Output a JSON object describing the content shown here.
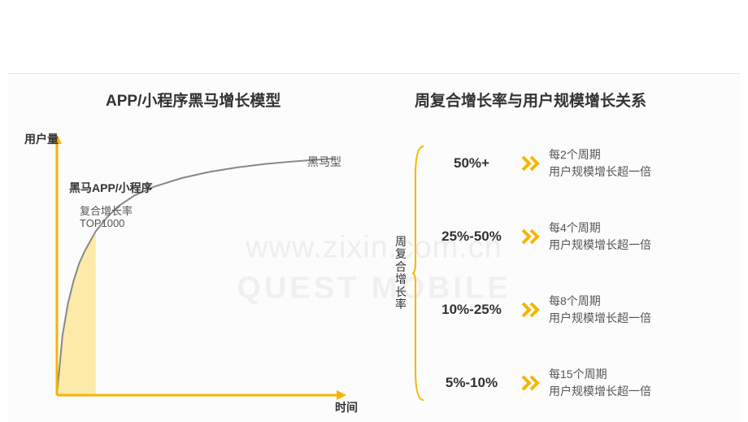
{
  "colors": {
    "accent": "#f6b500",
    "accent_fill": "#fde9a8",
    "curve": "#888888",
    "axis": "#f6b500",
    "text": "#333333",
    "subtext": "#555555",
    "background": "#fcfcfc",
    "watermark": "#eeeeee"
  },
  "watermark_line1": "www.zixin.com.cn",
  "watermark_line2": "QUEST MOBILE",
  "left": {
    "title": "APP/小程序黑马增长模型",
    "y_axis_label": "用户量",
    "x_axis_label": "时间",
    "curve_label": "黑马型",
    "annotation_title": "黑马APP/小程序",
    "annotation_line1": "复合增长率",
    "annotation_line2": "TOP1000",
    "chart": {
      "type": "line-with-area-highlight",
      "xlim": [
        0,
        100
      ],
      "ylim": [
        0,
        100
      ],
      "curve_points": [
        [
          0,
          0
        ],
        [
          2,
          24
        ],
        [
          4,
          37
        ],
        [
          6,
          46
        ],
        [
          8,
          53
        ],
        [
          10,
          58
        ],
        [
          14,
          66
        ],
        [
          18,
          71.5
        ],
        [
          22,
          76
        ],
        [
          28,
          80.5
        ],
        [
          35,
          84
        ],
        [
          45,
          87.5
        ],
        [
          55,
          90
        ],
        [
          65,
          91.8
        ],
        [
          75,
          93.2
        ],
        [
          85,
          94.2
        ],
        [
          95,
          95
        ],
        [
          100,
          95.4
        ]
      ],
      "curve_color": "#888888",
      "curve_width": 2,
      "highlight_x_end": 14,
      "highlight_fill": "#fde9a8",
      "axis_color": "#f6b500",
      "axis_width": 3,
      "arrowheads": true
    }
  },
  "right": {
    "title": "周复合增长率与用户规模增长关系",
    "vertical_label": "周复合增长率",
    "bracket_color": "#f6b500",
    "chevron_color": "#f6b500",
    "rows": [
      {
        "range": "50%+",
        "desc_line1": "每2个周期",
        "desc_line2": "用户规模增长超一倍"
      },
      {
        "range": "25%-50%",
        "desc_line1": "每4个周期",
        "desc_line2": "用户规模增长超一倍"
      },
      {
        "range": "10%-25%",
        "desc_line1": "每8个周期",
        "desc_line2": "用户规模增长超一倍"
      },
      {
        "range": "5%-10%",
        "desc_line1": "每15个周期",
        "desc_line2": "用户规模增长超一倍"
      }
    ]
  }
}
